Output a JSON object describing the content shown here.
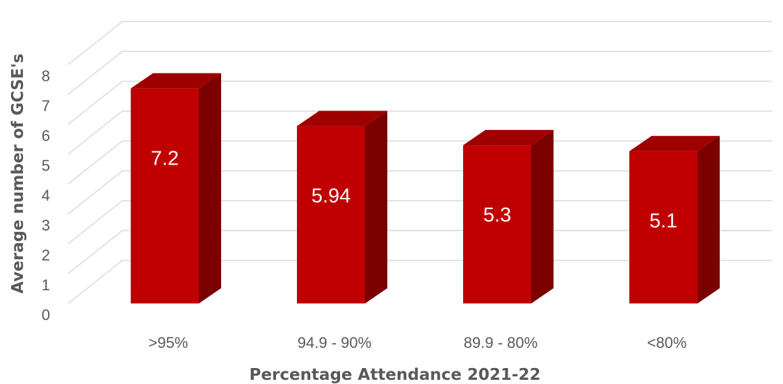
{
  "chart_data": {
    "type": "bar",
    "title": "",
    "xlabel": "Percentage Attendance 2021-22",
    "ylabel": "Average number of GCSE's",
    "categories": [
      ">95%",
      "94.9 - 90%",
      "89.9 - 80%",
      "<80%"
    ],
    "values": [
      7.2,
      5.94,
      5.3,
      5.1
    ],
    "data_labels": [
      "7.2",
      "5.94",
      "5.3",
      "5.1"
    ],
    "ylim": [
      0,
      8
    ],
    "yticks": [
      "0",
      "1",
      "2",
      "3",
      "4",
      "5",
      "6",
      "7",
      "8"
    ],
    "grid": true,
    "style": "3d-column",
    "colors": {
      "front": "#c00000",
      "side": "#7b0000",
      "top": "#9e0000",
      "grid": "#d9d9d9",
      "text": "#595959"
    }
  }
}
